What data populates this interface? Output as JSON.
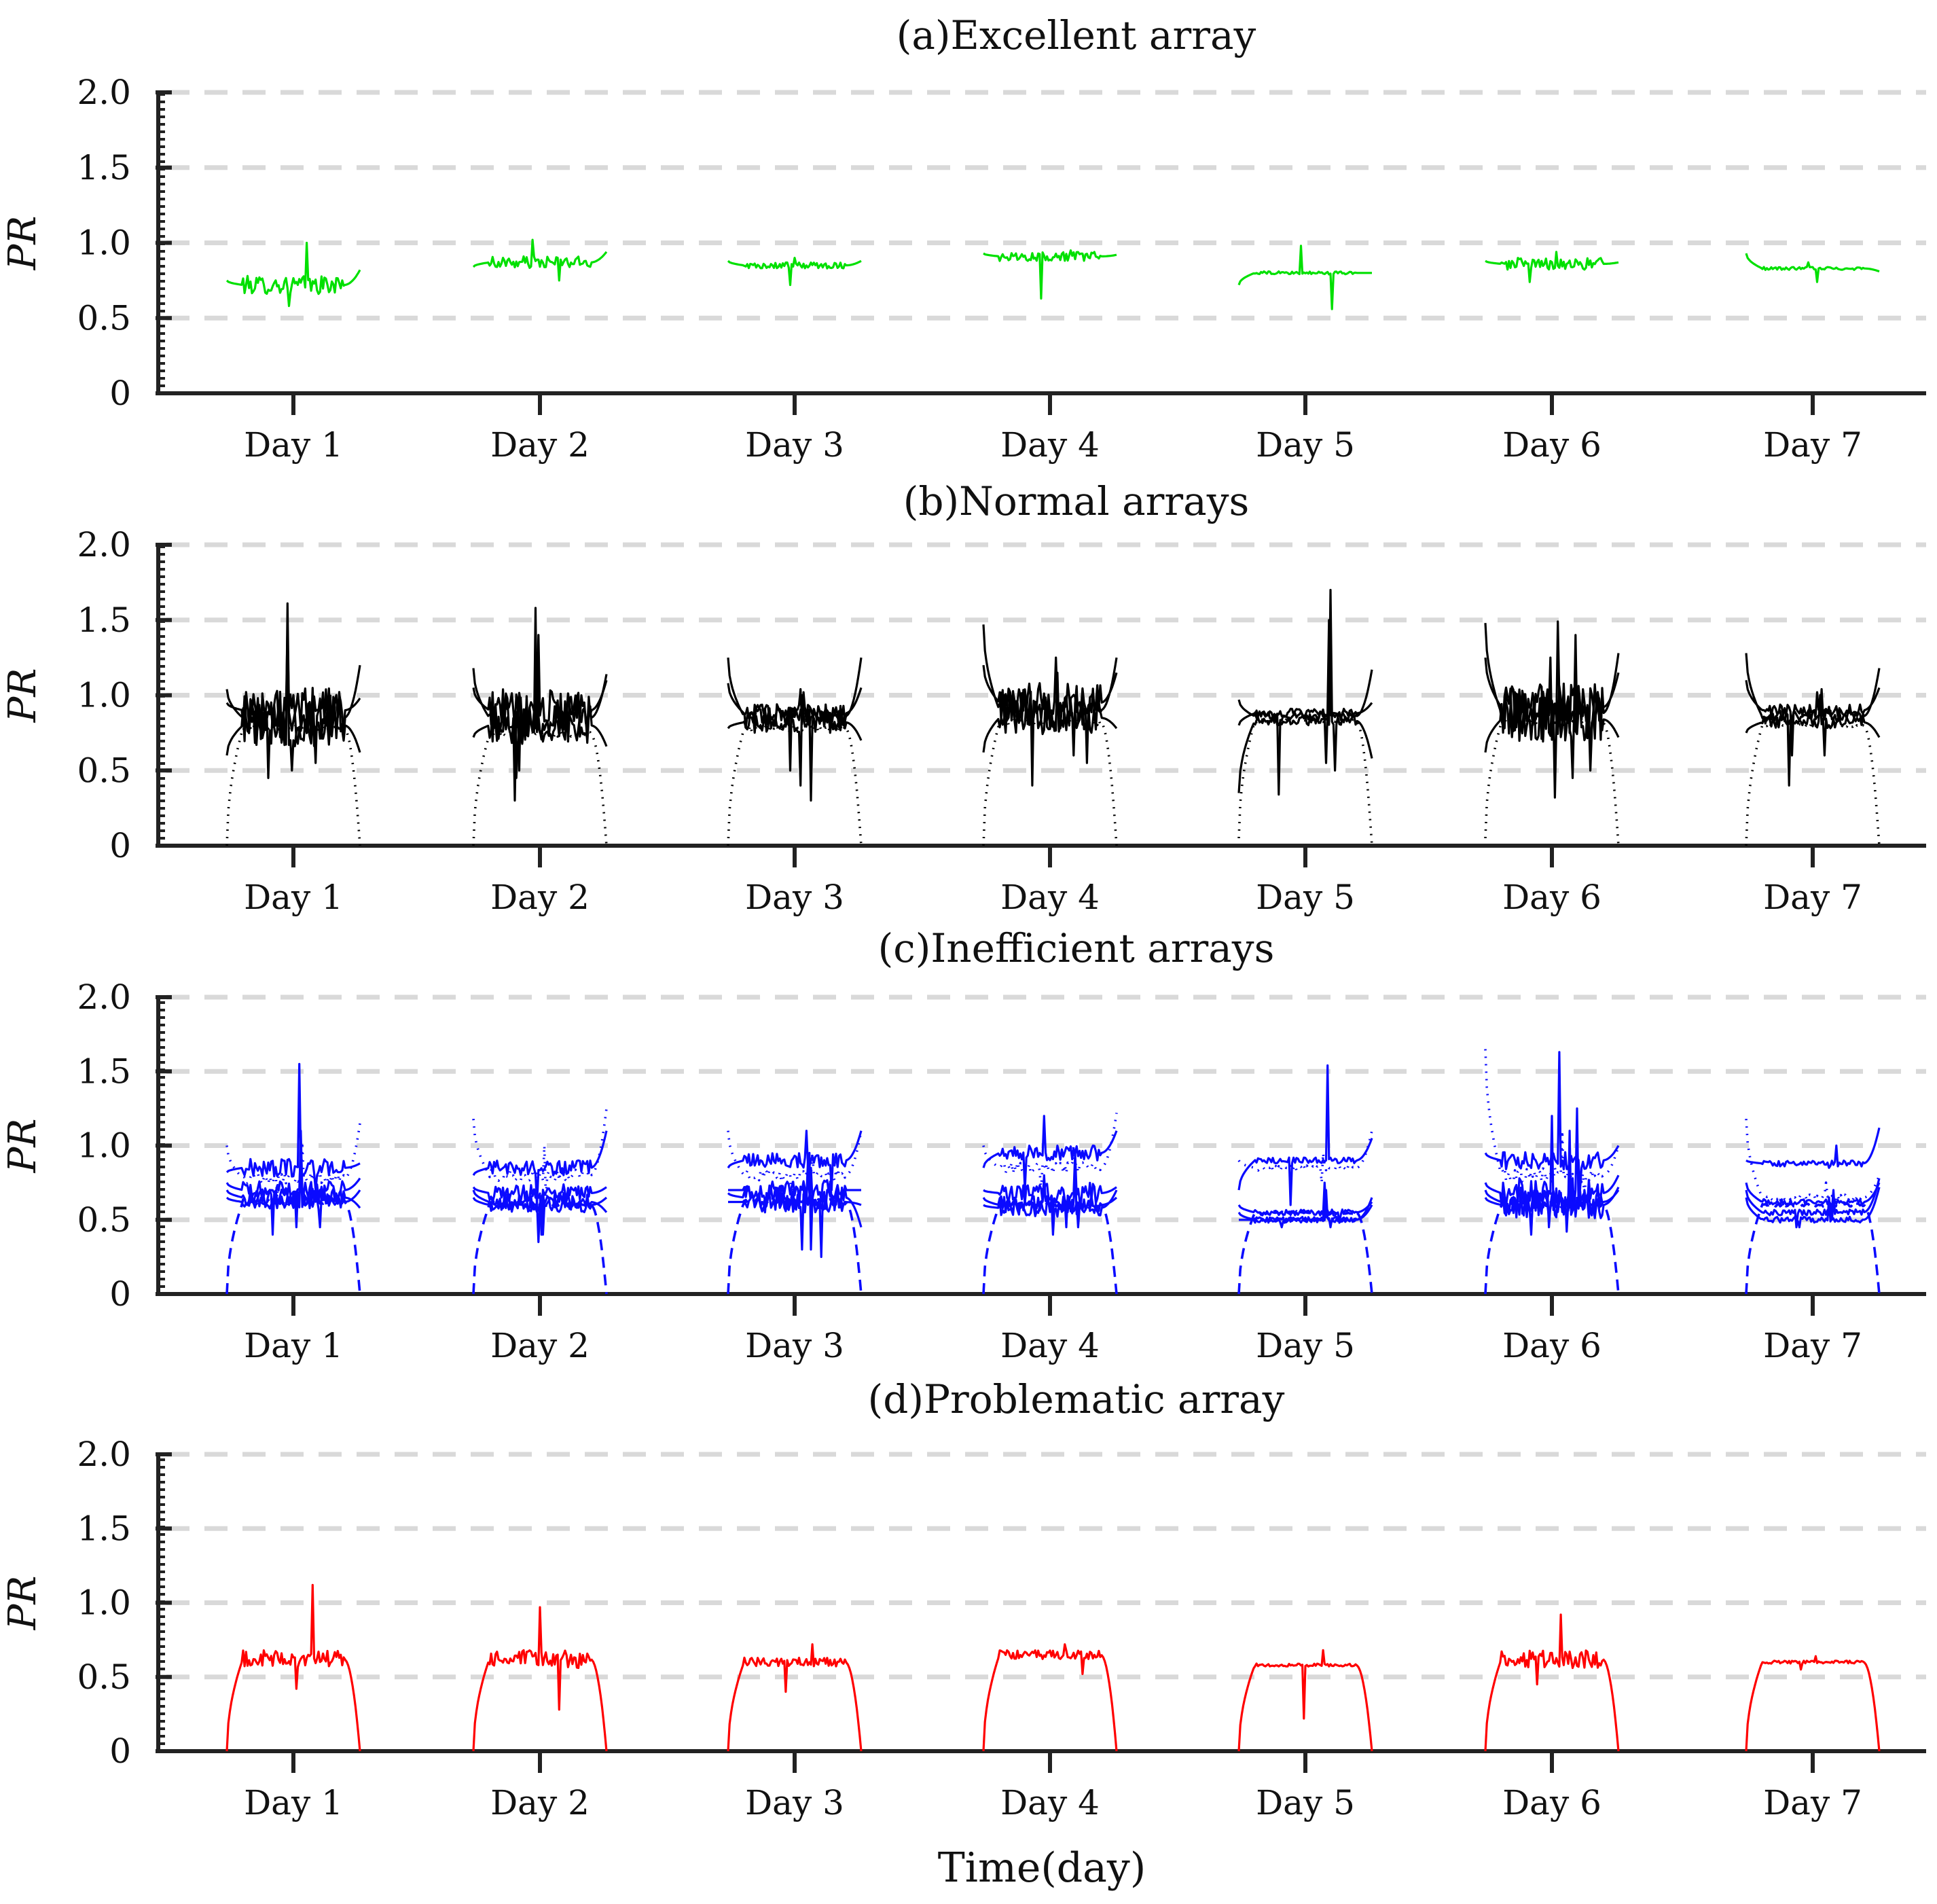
{
  "x_axis_title": "Time(day)",
  "chart_data": [
    {
      "type": "line",
      "title": "(a)Excellent array",
      "ylabel": "PR",
      "ylim": [
        0,
        2
      ],
      "y_ticks": [
        "0",
        "0.5",
        "1.0",
        "1.5",
        "2.0"
      ],
      "categories": [
        "Day 1",
        "Day 2",
        "Day 3",
        "Day 4",
        "Day 5",
        "Day 6",
        "Day 7"
      ],
      "grid": "horizontal dashed",
      "color": "#00e000",
      "series": [
        {
          "style": "solid",
          "values": [
            0.72,
            0.87,
            0.85,
            0.91,
            0.8,
            0.86,
            0.83
          ],
          "start": [
            0.75,
            0.84,
            0.88,
            0.93,
            0.72,
            0.88,
            0.93
          ],
          "end": [
            0.82,
            0.94,
            0.88,
            0.92,
            0.8,
            0.87,
            0.81
          ],
          "noise": [
            0.06,
            0.04,
            0.02,
            0.03,
            0.01,
            0.04,
            0.01
          ],
          "spike": [
            1.0,
            1.02,
            0.9,
            0.95,
            0.98,
            0.94,
            0.87
          ],
          "dip": [
            0.58,
            0.75,
            0.72,
            0.63,
            0.56,
            0.74,
            0.74
          ]
        }
      ]
    },
    {
      "type": "line",
      "title": "(b)Normal arrays",
      "ylabel": "PR",
      "ylim": [
        0,
        2
      ],
      "y_ticks": [
        "0",
        "0.5",
        "1.0",
        "1.5",
        "2.0"
      ],
      "categories": [
        "Day 1",
        "Day 2",
        "Day 3",
        "Day 4",
        "Day 5",
        "Day 6",
        "Day 7"
      ],
      "grid": "horizontal dashed",
      "color": "#000000",
      "series": [
        {
          "style": "solid",
          "values": [
            0.85,
            0.85,
            0.86,
            0.9,
            0.86,
            0.88,
            0.86
          ],
          "start": [
            1.04,
            1.18,
            1.25,
            1.47,
            0.97,
            1.48,
            1.28
          ],
          "end": [
            1.2,
            1.14,
            1.25,
            1.25,
            1.17,
            1.28,
            1.18
          ],
          "noise": [
            0.18,
            0.17,
            0.08,
            0.14,
            0.03,
            0.19,
            0.04
          ],
          "spike": [
            1.61,
            1.58,
            1.04,
            1.15,
            1.7,
            1.49,
            1.04
          ],
          "dip": [
            0.45,
            0.3,
            0.3,
            0.4,
            0.34,
            0.32,
            0.4
          ]
        },
        {
          "style": "solid",
          "values": [
            0.8,
            0.8,
            0.82,
            0.85,
            0.83,
            0.84,
            0.82
          ],
          "start": [
            0.6,
            0.72,
            0.78,
            0.62,
            0.35,
            0.62,
            0.75
          ],
          "end": [
            0.62,
            0.66,
            0.7,
            0.78,
            0.58,
            0.72,
            0.72
          ],
          "noise": [
            0.14,
            0.13,
            0.07,
            0.11,
            0.03,
            0.15,
            0.04
          ],
          "spike": [
            1.3,
            1.28,
            1.0,
            1.1,
            1.35,
            1.25,
            1.0
          ],
          "dip": [
            0.5,
            0.45,
            0.4,
            0.55,
            0.5,
            0.45,
            0.6
          ]
        },
        {
          "style": "solid",
          "values": [
            0.9,
            0.9,
            0.88,
            0.95,
            0.88,
            0.92,
            0.9
          ],
          "start": [
            0.95,
            1.05,
            1.08,
            1.2,
            0.8,
            1.25,
            1.1
          ],
          "end": [
            0.98,
            1.1,
            1.05,
            1.15,
            0.95,
            1.15,
            1.05
          ],
          "noise": [
            0.15,
            0.14,
            0.06,
            0.13,
            0.03,
            0.16,
            0.04
          ],
          "spike": [
            1.45,
            1.4,
            1.02,
            1.25,
            1.5,
            1.4,
            1.02
          ],
          "dip": [
            0.55,
            0.5,
            0.5,
            0.6,
            0.55,
            0.5,
            0.6
          ]
        },
        {
          "style": "dotted",
          "values": [
            0.78,
            0.74,
            0.78,
            0.82,
            0.83,
            0.82,
            0.8
          ],
          "start": [
            0.0,
            0.0,
            0.0,
            0.0,
            0.05,
            0.05,
            0.0
          ],
          "end": [
            0.0,
            0.0,
            0.0,
            0.0,
            0.0,
            0.0,
            0.0
          ],
          "noise": [
            0.02,
            0.02,
            0.02,
            0.02,
            0.01,
            0.02,
            0.01
          ],
          "spike": [
            0.78,
            0.74,
            0.78,
            0.82,
            0.83,
            0.82,
            0.8
          ],
          "dip": [
            0.78,
            0.74,
            0.78,
            0.82,
            0.83,
            0.82,
            0.8
          ]
        }
      ]
    },
    {
      "type": "line",
      "title": "(c)Inefficient arrays",
      "ylabel": "PR",
      "ylim": [
        0,
        2
      ],
      "y_ticks": [
        "0",
        "0.5",
        "1.0",
        "1.5",
        "2.0"
      ],
      "categories": [
        "Day 1",
        "Day 2",
        "Day 3",
        "Day 4",
        "Day 5",
        "Day 6",
        "Day 7"
      ],
      "grid": "horizontal dashed",
      "color": "#0a0aff",
      "series": [
        {
          "style": "solid",
          "values": [
            0.85,
            0.85,
            0.9,
            0.95,
            0.9,
            0.9,
            0.88
          ],
          "start": [
            0.82,
            0.8,
            0.85,
            0.85,
            0.7,
            0.95,
            0.9
          ],
          "end": [
            0.88,
            1.1,
            1.1,
            1.1,
            1.05,
            1.0,
            1.12
          ],
          "noise": [
            0.06,
            0.05,
            0.05,
            0.05,
            0.02,
            0.06,
            0.02
          ],
          "spike": [
            1.55,
            1.38,
            1.1,
            1.2,
            1.54,
            1.63,
            1.0
          ],
          "dip": [
            0.7,
            0.6,
            0.7,
            0.7,
            0.6,
            0.7,
            0.85
          ]
        },
        {
          "style": "solid",
          "values": [
            0.65,
            0.62,
            0.65,
            0.6,
            0.5,
            0.62,
            0.55
          ],
          "start": [
            0.7,
            0.7,
            0.68,
            0.65,
            0.55,
            0.7,
            0.7
          ],
          "end": [
            0.58,
            0.55,
            0.45,
            0.65,
            0.6,
            0.7,
            0.78
          ],
          "noise": [
            0.06,
            0.06,
            0.08,
            0.06,
            0.02,
            0.1,
            0.02
          ],
          "spike": [
            1.0,
            1.1,
            0.9,
            0.8,
            0.7,
            1.2,
            0.7
          ],
          "dip": [
            0.4,
            0.35,
            0.25,
            0.45,
            0.45,
            0.4,
            0.45
          ]
        },
        {
          "style": "solid",
          "values": [
            0.7,
            0.68,
            0.7,
            0.68,
            0.55,
            0.68,
            0.62
          ],
          "start": [
            0.75,
            0.72,
            0.7,
            0.7,
            0.6,
            0.75,
            0.75
          ],
          "end": [
            0.78,
            0.72,
            0.7,
            0.72,
            0.62,
            0.8,
            0.75
          ],
          "noise": [
            0.06,
            0.06,
            0.07,
            0.07,
            0.02,
            0.1,
            0.02
          ],
          "spike": [
            1.1,
            1.2,
            0.95,
            0.95,
            0.75,
            1.25,
            0.72
          ],
          "dip": [
            0.45,
            0.4,
            0.3,
            0.45,
            0.48,
            0.45,
            0.5
          ]
        },
        {
          "style": "solid",
          "values": [
            0.62,
            0.6,
            0.62,
            0.58,
            0.5,
            0.6,
            0.5
          ],
          "start": [
            0.65,
            0.65,
            0.62,
            0.6,
            0.5,
            0.65,
            0.65
          ],
          "end": [
            0.7,
            0.65,
            0.6,
            0.7,
            0.65,
            0.72,
            0.72
          ],
          "noise": [
            0.05,
            0.05,
            0.07,
            0.06,
            0.02,
            0.09,
            0.02
          ],
          "spike": [
            0.95,
            1.0,
            0.85,
            0.85,
            0.7,
            1.1,
            0.65
          ],
          "dip": [
            0.45,
            0.4,
            0.3,
            0.4,
            0.45,
            0.42,
            0.45
          ]
        },
        {
          "style": "dotted",
          "values": [
            0.78,
            0.8,
            0.8,
            0.85,
            0.85,
            0.8,
            0.65
          ],
          "start": [
            1.0,
            1.18,
            1.1,
            1.0,
            0.9,
            1.65,
            1.18
          ],
          "end": [
            1.15,
            1.25,
            1.1,
            1.22,
            1.1,
            1.0,
            0.8
          ],
          "noise": [
            0.04,
            0.04,
            0.04,
            0.04,
            0.02,
            0.05,
            0.02
          ],
          "spike": [
            1.0,
            1.0,
            0.95,
            1.0,
            0.95,
            1.1,
            0.75
          ],
          "dip": [
            0.65,
            0.65,
            0.65,
            0.7,
            0.75,
            0.65,
            0.55
          ]
        },
        {
          "style": "dashed",
          "values": [
            0.62,
            0.6,
            0.62,
            0.6,
            0.55,
            0.6,
            0.6
          ],
          "start": [
            0.0,
            0.0,
            0.0,
            0.0,
            0.0,
            0.0,
            0.0
          ],
          "end": [
            0.0,
            0.0,
            0.0,
            0.0,
            0.0,
            0.0,
            0.0
          ],
          "noise": [
            0.02,
            0.02,
            0.02,
            0.02,
            0.01,
            0.02,
            0.01
          ],
          "spike": [
            0.62,
            0.6,
            0.62,
            0.6,
            0.55,
            0.6,
            0.6
          ],
          "dip": [
            0.62,
            0.6,
            0.62,
            0.6,
            0.55,
            0.6,
            0.6
          ]
        }
      ]
    },
    {
      "type": "line",
      "title": "(d)Problematic array",
      "ylabel": "PR",
      "ylim": [
        0,
        2
      ],
      "y_ticks": [
        "0",
        "0.5",
        "1.0",
        "1.5",
        "2.0"
      ],
      "categories": [
        "Day 1",
        "Day 2",
        "Day 3",
        "Day 4",
        "Day 5",
        "Day 6",
        "Day 7"
      ],
      "grid": "horizontal dashed",
      "color": "#ff0000",
      "series": [
        {
          "style": "solid",
          "values": [
            0.62,
            0.62,
            0.6,
            0.65,
            0.58,
            0.62,
            0.6
          ],
          "start": [
            0.0,
            0.0,
            0.0,
            0.0,
            0.0,
            0.0,
            0.0
          ],
          "end": [
            0.0,
            0.0,
            0.0,
            0.0,
            0.0,
            0.0,
            0.0
          ],
          "noise": [
            0.06,
            0.06,
            0.03,
            0.03,
            0.01,
            0.06,
            0.01
          ],
          "spike": [
            1.12,
            0.97,
            0.72,
            0.72,
            0.68,
            0.92,
            0.64
          ],
          "dip": [
            0.42,
            0.28,
            0.4,
            0.52,
            0.22,
            0.45,
            0.55
          ]
        }
      ]
    }
  ]
}
